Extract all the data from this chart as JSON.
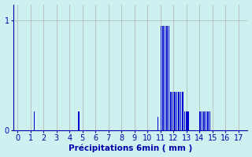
{
  "title": "",
  "xlabel": "Précipitations 6min ( mm )",
  "ylabel": "",
  "bg_color": "#cff0f0",
  "bar_color": "#0000cc",
  "grid_color": "#b0b0b0",
  "axis_color": "#0000aa",
  "text_color": "#0000aa",
  "xlim": [
    -0.3,
    17.7
  ],
  "ylim": [
    0,
    1.15
  ],
  "yticks": [
    0,
    1
  ],
  "xticks": [
    0,
    1,
    2,
    3,
    4,
    5,
    6,
    7,
    8,
    9,
    10,
    11,
    12,
    13,
    14,
    15,
    16,
    17
  ],
  "bar_positions": [
    1.3,
    4.7,
    10.8,
    11.05,
    11.2,
    11.35,
    11.5,
    11.65,
    11.8,
    11.95,
    12.1,
    12.25,
    12.4,
    12.55,
    12.7,
    12.85,
    13.0,
    13.15,
    14.05,
    14.2,
    14.35,
    14.5,
    14.65,
    14.8
  ],
  "bar_heights": [
    0.17,
    0.17,
    0.12,
    0.95,
    0.95,
    0.95,
    0.95,
    0.95,
    0.35,
    0.35,
    0.35,
    0.35,
    0.35,
    0.35,
    0.35,
    0.17,
    0.17,
    0.17,
    0.17,
    0.17,
    0.17,
    0.17,
    0.17,
    0.17
  ],
  "bar_width": 0.1
}
